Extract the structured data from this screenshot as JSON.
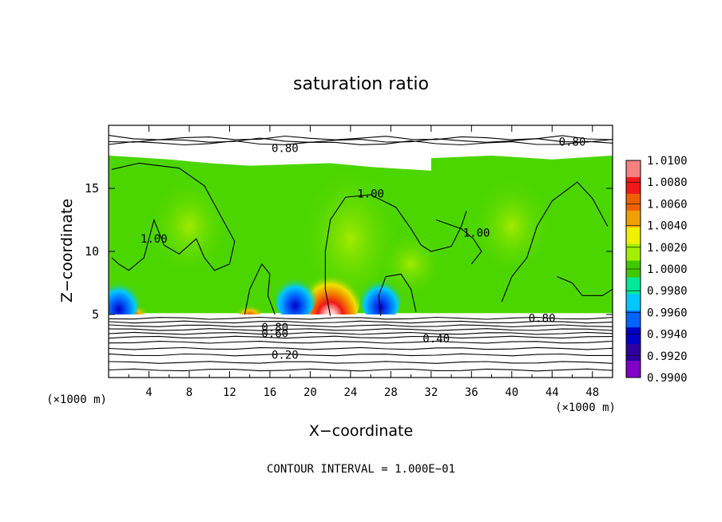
{
  "chart_data": {
    "type": "heatmap",
    "title": "saturation ratio",
    "xlabel": "X−coordinate",
    "ylabel": "Z−coordinate",
    "x_unit": "(×1000 m)",
    "y_unit": "(×1000 m)",
    "xlim": [
      0,
      50
    ],
    "ylim": [
      0,
      20
    ],
    "x_ticks": [
      4,
      8,
      12,
      16,
      20,
      24,
      28,
      32,
      36,
      40,
      44,
      48
    ],
    "y_ticks": [
      5,
      10,
      15
    ],
    "contour_interval_text": "CONTOUR INTERVAL = 1.000E−01",
    "contour_labels": [
      {
        "text": "0.80",
        "x": 17.5,
        "z": 18.2
      },
      {
        "text": "0.80",
        "x": 46.0,
        "z": 18.7
      },
      {
        "text": "1.00",
        "x": 26.0,
        "z": 14.6
      },
      {
        "text": "1.00",
        "x": 4.5,
        "z": 11.0
      },
      {
        "text": "1.00",
        "x": 36.5,
        "z": 11.5
      },
      {
        "text": "0.80",
        "x": 16.5,
        "z": 4.0
      },
      {
        "text": "0.60",
        "x": 16.5,
        "z": 3.5
      },
      {
        "text": "0.80",
        "x": 43.0,
        "z": 4.7
      },
      {
        "text": "0.40",
        "x": 32.5,
        "z": 3.1
      },
      {
        "text": "0.20",
        "x": 17.5,
        "z": 1.8
      }
    ],
    "colorbar": {
      "labels": [
        "1.0100",
        "1.0080",
        "1.0060",
        "1.0040",
        "1.0020",
        "1.0000",
        "0.9980",
        "0.9960",
        "0.9940",
        "0.9920",
        "0.9900"
      ],
      "colors": [
        "#f58080",
        "#f01818",
        "#f06000",
        "#f0a000",
        "#f0f000",
        "#a0f000",
        "#40c800",
        "#00e896",
        "#00c8ff",
        "#0064ff",
        "#0000c8",
        "#3000a0",
        "#8000c8"
      ]
    },
    "fields": {
      "background": "#4cd600",
      "upper_dry": "#ffffff",
      "lower_dry": "#ffffff"
    },
    "features": [
      {
        "kind": "peak",
        "x": 22.0,
        "z": 5.2,
        "value": 1.01
      },
      {
        "kind": "peak",
        "x": 14.0,
        "z": 5.1,
        "value": 1.006
      },
      {
        "kind": "peak",
        "x": 2.5,
        "z": 5.1,
        "value": 1.006
      },
      {
        "kind": "trough",
        "x": 27.0,
        "z": 5.5,
        "value": 0.993
      },
      {
        "kind": "trough",
        "x": 18.5,
        "z": 5.6,
        "value": 0.995
      },
      {
        "kind": "trough",
        "x": 1.0,
        "z": 5.3,
        "value": 0.994
      }
    ]
  }
}
